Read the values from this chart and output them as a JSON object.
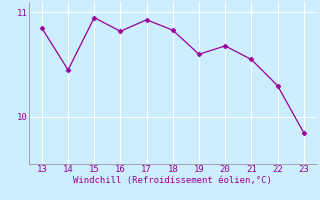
{
  "x": [
    13,
    14,
    15,
    16,
    17,
    18,
    19,
    20,
    21,
    22,
    23
  ],
  "y": [
    10.85,
    10.45,
    10.95,
    10.82,
    10.93,
    10.83,
    10.6,
    10.68,
    10.55,
    10.3,
    9.85
  ],
  "line_color": "#990099",
  "marker": "D",
  "marker_size": 2.5,
  "bg_color": "#cceeff",
  "grid_color": "#ffffff",
  "xlabel": "Windchill (Refroidissement éolien,°C)",
  "xlabel_color": "#990099",
  "tick_color": "#990099",
  "ylim": [
    9.55,
    11.1
  ],
  "xlim": [
    12.5,
    23.5
  ],
  "yticks": [
    10,
    11
  ],
  "xticks": [
    13,
    14,
    15,
    16,
    17,
    18,
    19,
    20,
    21,
    22,
    23
  ]
}
